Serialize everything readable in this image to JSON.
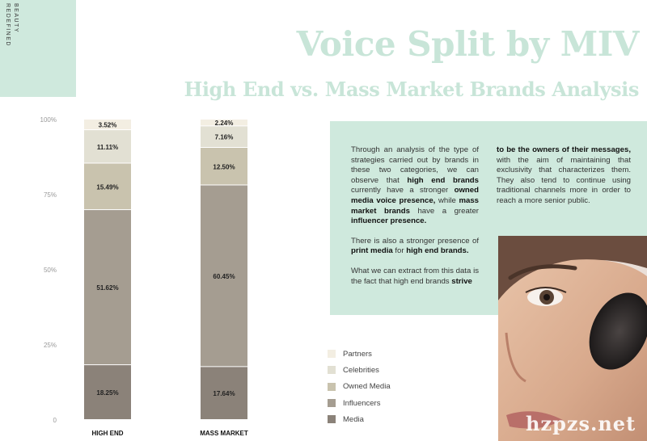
{
  "brand": {
    "text_line1": "BEAUTY",
    "text_line2": "REDEFINED"
  },
  "header": {
    "title": "Voice Split by MIV",
    "subtitle": "High End vs. Mass Market Brands Analysis"
  },
  "colors": {
    "mint": "#cfe9dd",
    "title_mint": "#c8e5d8",
    "partners": "#f3eee2",
    "celebrities": "#e2e0d3",
    "owned_media": "#c9c3ae",
    "influencers": "#a59d91",
    "media": "#8b8279"
  },
  "chart_data": {
    "type": "bar",
    "stacked": true,
    "categories": [
      "HIGH END",
      "MASS MARKET"
    ],
    "series": [
      {
        "name": "Media",
        "values": [
          18.25,
          17.64
        ],
        "labels": [
          "18.25%",
          "17.64%"
        ]
      },
      {
        "name": "Influencers",
        "values": [
          51.62,
          60.45
        ],
        "labels": [
          "51.62%",
          "60.45%"
        ]
      },
      {
        "name": "Owned Media",
        "values": [
          15.49,
          12.5
        ],
        "labels": [
          "15.49%",
          "12.50%"
        ]
      },
      {
        "name": "Celebrities",
        "values": [
          11.11,
          7.16
        ],
        "labels": [
          "11.11%",
          "7.16%"
        ]
      },
      {
        "name": "Partners",
        "values": [
          3.52,
          2.24
        ],
        "labels": [
          "3.52%",
          "2.24%"
        ]
      }
    ],
    "y_ticks": [
      0,
      25,
      50,
      75,
      100
    ],
    "y_tick_labels": [
      "0",
      "25%",
      "50%",
      "75%",
      "100%"
    ],
    "ylim": [
      0,
      100
    ],
    "grid": false,
    "legend_position": "right"
  },
  "legend": {
    "items": [
      {
        "label": "Partners",
        "color": "#f3eee2"
      },
      {
        "label": "Celebrities",
        "color": "#e2e0d3"
      },
      {
        "label": "Owned Media",
        "color": "#c9c3ae"
      },
      {
        "label": "Influencers",
        "color": "#a59d91"
      },
      {
        "label": "Media",
        "color": "#8b8279"
      }
    ]
  },
  "text_box": {
    "p1_a": "Through an analysis of the type of strategies carried out by brands in these two categories, we can observe that ",
    "p1_b": "high end brands",
    "p1_c": " currently have a stronger ",
    "p1_d": "owned media voice presence,",
    "p1_e": " while ",
    "p1_f": "mass market brands",
    "p1_g": " have a greater ",
    "p1_h": "influencer presence.",
    "p2_a": "There is also a stronger presence of ",
    "p2_b": "print media",
    "p2_c": " for ",
    "p2_d": "high end brands.",
    "p3_a": "What we can extract from this data is the fact that high end brands ",
    "p3_b": "strive",
    "p4_a": "to be the owners of their messages,",
    "p4_b": " with the aim of maintaining that exclusivity that characterizes them. They also tend to continue using traditional channels more in order to reach a more senior public."
  },
  "watermark": "hzpzs.net"
}
